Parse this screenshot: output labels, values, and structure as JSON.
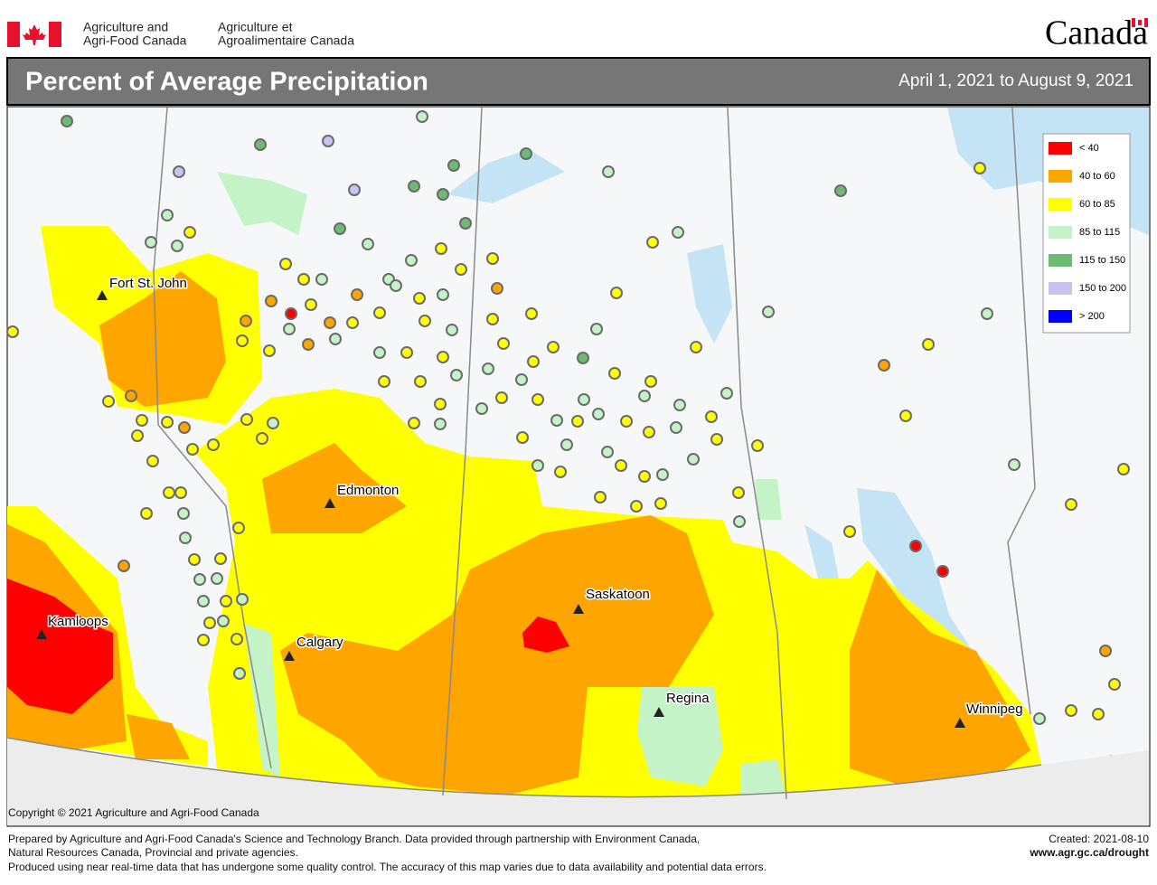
{
  "header": {
    "org_en_1": "Agriculture and",
    "org_en_2": "Agri-Food Canada",
    "org_fr_1": "Agriculture et",
    "org_fr_2": "Agroalimentaire Canada",
    "wordmark": "Canada"
  },
  "title": "Percent of Average Precipitation",
  "date_range": "April 1, 2021 to August 9, 2021",
  "legend": [
    {
      "label": "< 40",
      "color": "#ff0000"
    },
    {
      "label": "40 to 60",
      "color": "#ffa500"
    },
    {
      "label": "60 to 85",
      "color": "#ffff00"
    },
    {
      "label": "85 to 115",
      "color": "#c5f3c8"
    },
    {
      "label": "115 to 150",
      "color": "#6dbb72"
    },
    {
      "label": "150 to 200",
      "color": "#c9c3f2"
    },
    {
      "label": "> 200",
      "color": "#0000ff"
    }
  ],
  "cities": [
    "Fort St. John",
    "Edmonton",
    "Kamloops",
    "Calgary",
    "Saskatoon",
    "Regina",
    "Winnipeg"
  ],
  "copyright": "Copyright © 2021 Agriculture and Agri-Food Canada",
  "footer": {
    "lines": [
      "Prepared by Agriculture and Agri-Food Canada's Science and Technology Branch. Data provided through partnership with Environment Canada,",
      "Natural Resources Canada, Provincial and private agencies.",
      "Produced using near real-time data that has undergone some quality control. The accuracy of this map varies due to data availability and potential data errors."
    ],
    "created": "Created: 2021-08-10",
    "url": "www.agr.gc.ca/drought"
  }
}
